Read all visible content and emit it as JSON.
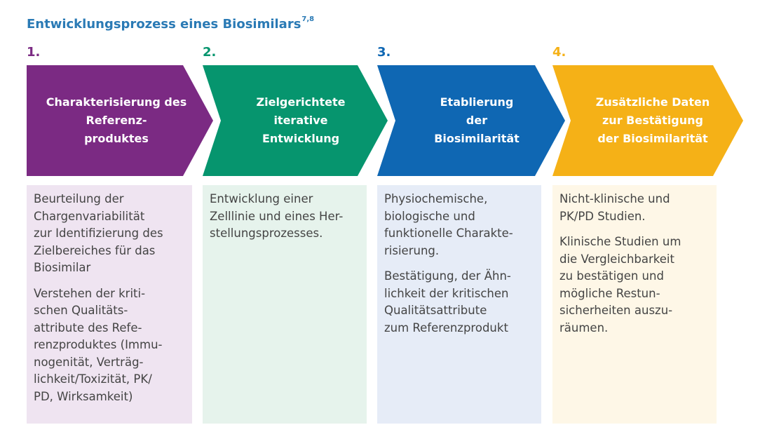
{
  "title": {
    "text": "Entwicklungsprozess eines Biosimilars",
    "superscript": "7,8"
  },
  "colors": {
    "title": "#2a7ab5",
    "step1": "#7b2a83",
    "step2": "#06956e",
    "step3": "#0f67b3",
    "step4": "#f5b117",
    "box1": "#efe4f1",
    "box2": "#e6f3ec",
    "box3": "#e6ecf7",
    "box4": "#fef7e7"
  },
  "steps": [
    {
      "number": "1.",
      "label": "Charakterisierung des\nReferenz-\nproduktes",
      "paragraphs": [
        "Beurteilung der\nChargenvariabilität\nzur Identifizierung des\nZielbereiches für das\nBiosimilar",
        "Verstehen der kriti-\nschen Qualitäts-\nattribute des Refe-\nrenzproduktes (Immu-\nnogenität, Verträg-\nlichkeit/Toxizität, PK/\nPD, Wirksamkeit)"
      ]
    },
    {
      "number": "2.",
      "label": "Zielgerichtete\niterative\nEntwicklung",
      "paragraphs": [
        "Entwicklung einer\nZelllinie und eines Her-\nstellungsprozesses."
      ]
    },
    {
      "number": "3.",
      "label": "Etablierung\nder\nBiosimilarität",
      "paragraphs": [
        "Physiochemische,\nbiologische und\nfunktionelle Charakte-\nrisierung.",
        "Bestätigung, der Ähn-\nlichkeit der kritischen\nQualitätsattribute\nzum Referenzprodukt"
      ]
    },
    {
      "number": "4.",
      "label": "Zusätzliche Daten\nzur Bestätigung\nder Biosimilarität",
      "paragraphs": [
        "Nicht-klinische und\nPK/PD Studien.",
        "Klinische Studien um\ndie Vergleichbarkeit\nzu bestätigen und\nmögliche Restun-\nsicherheiten auszu-\nräumen."
      ]
    }
  ]
}
